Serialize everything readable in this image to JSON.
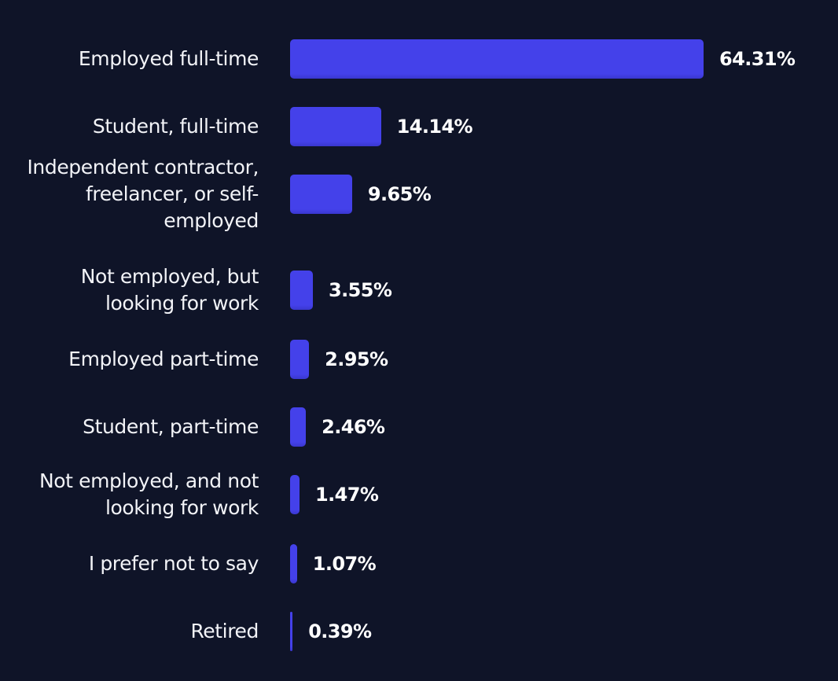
{
  "chart_data": {
    "type": "bar",
    "orientation": "horizontal",
    "categories": [
      "Employed full-time",
      "Student, full-time",
      "Independent contractor, freelancer, or self-employed",
      "Not employed, but looking for work",
      "Employed part-time",
      "Student, part-time",
      "Not employed, and not looking for work",
      "I prefer not to say",
      "Retired"
    ],
    "values": [
      64.31,
      14.14,
      9.65,
      3.55,
      2.95,
      2.46,
      1.47,
      1.07,
      0.39
    ],
    "value_labels": [
      "64.31%",
      "14.14%",
      "9.65%",
      "3.55%",
      "2.95%",
      "2.46%",
      "1.47%",
      "1.07%",
      "0.39%"
    ],
    "bar_color": "#4441ea",
    "background_color": "#0f1428",
    "grid": false,
    "legend": "none"
  }
}
